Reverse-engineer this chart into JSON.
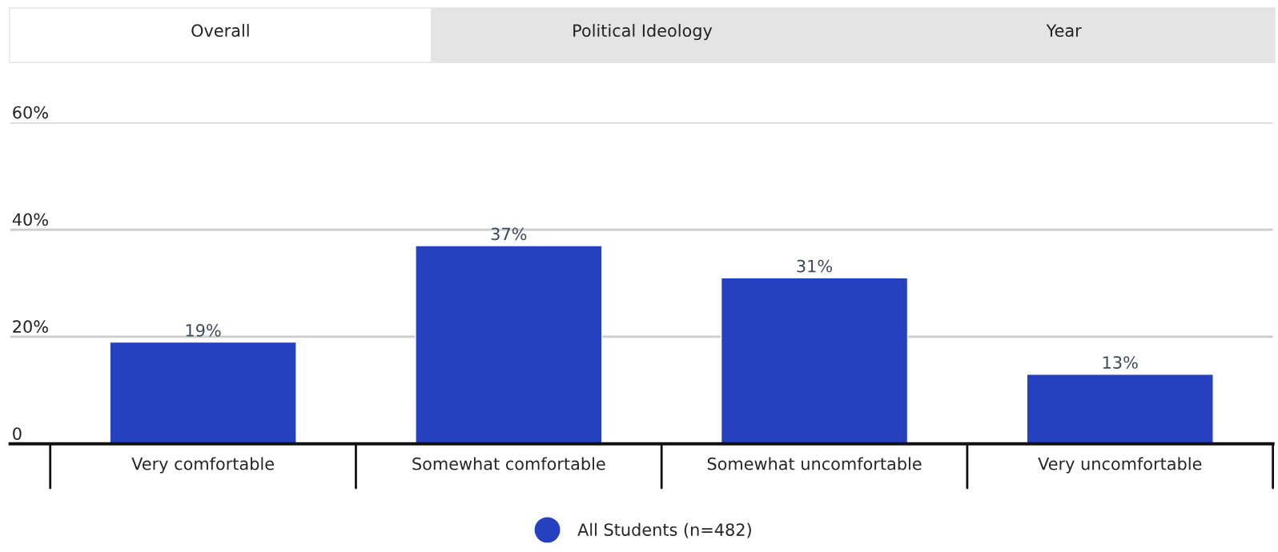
{
  "chart_data": {
    "type": "bar",
    "annotations": [
      "Overall",
      "Political Ideology",
      "Year"
    ],
    "categories": [
      "Very comfortable",
      "Somewhat comfortable",
      "Somewhat uncomfortable",
      "Very uncomfortable"
    ],
    "series": [
      {
        "name": "All Students (n=482)",
        "color": "#2541c0",
        "values": [
          19,
          37,
          31,
          13
        ],
        "value_labels": [
          "19%",
          "37%",
          "31%",
          "13%"
        ]
      }
    ],
    "ylim": [
      0,
      60
    ],
    "yticks": [
      0,
      {
        "value": 20,
        "label": "20%"
      },
      {
        "value": 40,
        "label": "40%"
      },
      {
        "value": 60,
        "label": "60%"
      }
    ],
    "grid": "y",
    "legend": "bottom"
  }
}
